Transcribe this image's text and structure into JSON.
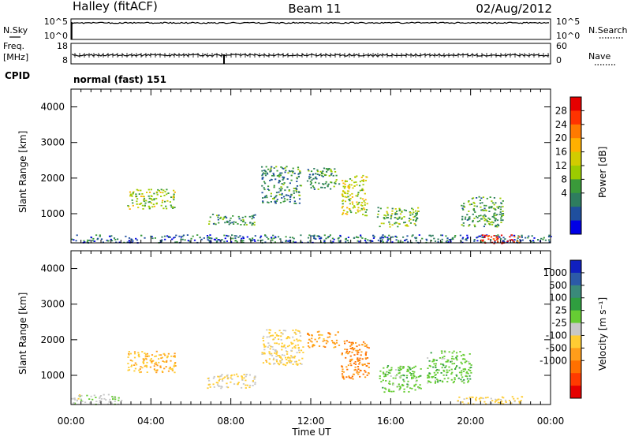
{
  "header": {
    "site": "Halley (fitACF)",
    "beam": "Beam 11",
    "date": "02/Aug/2012"
  },
  "top_strip": {
    "left_label": "N.Sky",
    "right_label": "N.Search",
    "left_ticks": [
      "10^5",
      "10^0"
    ],
    "right_ticks": [
      "10^5",
      "10^0"
    ]
  },
  "freq_strip": {
    "left_label_line1": "Freq.",
    "left_label_line2": "[MHz]",
    "right_label": "Nave",
    "left_ticks": [
      "18",
      "8"
    ],
    "right_ticks": [
      "60",
      "0"
    ]
  },
  "cpid": {
    "label": "CPID",
    "value": "normal (fast) 151"
  },
  "axes": {
    "ylabel": "Slant Range [km]",
    "xlabel": "Time UT",
    "yticks": [
      "4000",
      "3000",
      "2000",
      "1000"
    ],
    "xticks": [
      "00:00",
      "04:00",
      "08:00",
      "12:00",
      "16:00",
      "20:00",
      "00:00"
    ]
  },
  "power_colorbar": {
    "title": "Power [dB]",
    "ticks": [
      "28",
      "24",
      "20",
      "16",
      "12",
      "8",
      "4"
    ],
    "colors": [
      "#e60000",
      "#ff3300",
      "#ff7a00",
      "#ffb000",
      "#d2cc00",
      "#9ccc00",
      "#3a9a3a",
      "#2e7d5f",
      "#1f4f9e",
      "#0000e6"
    ]
  },
  "velocity_colorbar": {
    "title": "Velocity [m s⁻¹]",
    "ticks": [
      "1000",
      "500",
      "100",
      "25",
      "-25",
      "-100",
      "-500",
      "-1000"
    ],
    "colors": [
      "#1020c0",
      "#2c5aa8",
      "#3a8a7a",
      "#2f9e3f",
      "#66cc33",
      "#c8c8c8",
      "#ffcc33",
      "#ff9d1a",
      "#ff7000",
      "#ff3a00",
      "#e60000"
    ]
  },
  "chart_data": [
    {
      "type": "heatmap",
      "title": "Power [dB]",
      "xlabel": "Time UT",
      "ylabel": "Slant Range [km]",
      "xlim": [
        "00:00",
        "24:00"
      ],
      "ylim": [
        180,
        4500
      ],
      "clim": [
        0,
        30
      ],
      "patches": [
        {
          "t0": 0.0,
          "t1": 24.0,
          "r0": 200,
          "r1": 420,
          "value": 6
        },
        {
          "t0": 2.8,
          "t1": 5.2,
          "r0": 1150,
          "r1": 1700,
          "value": 14
        },
        {
          "t0": 6.8,
          "t1": 9.2,
          "r0": 700,
          "r1": 1000,
          "value": 9
        },
        {
          "t0": 9.5,
          "t1": 11.5,
          "r0": 1300,
          "r1": 2350,
          "value": 8
        },
        {
          "t0": 11.8,
          "t1": 13.4,
          "r0": 1700,
          "r1": 2300,
          "value": 10
        },
        {
          "t0": 13.5,
          "t1": 14.8,
          "r0": 950,
          "r1": 2100,
          "value": 16
        },
        {
          "t0": 15.3,
          "t1": 17.4,
          "r0": 650,
          "r1": 1200,
          "value": 12
        },
        {
          "t0": 19.5,
          "t1": 21.6,
          "r0": 650,
          "r1": 1500,
          "value": 10
        },
        {
          "t0": 20.5,
          "t1": 22.5,
          "r0": 180,
          "r1": 420,
          "value": 28
        }
      ]
    },
    {
      "type": "heatmap",
      "title": "Velocity [m s⁻¹]",
      "xlabel": "Time UT",
      "ylabel": "Slant Range [km]",
      "xlim": [
        "00:00",
        "24:00"
      ],
      "ylim": [
        180,
        4500
      ],
      "clim": [
        -1000,
        1000
      ],
      "patches": [
        {
          "t0": 0.0,
          "t1": 2.5,
          "r0": 200,
          "r1": 480,
          "value": 15
        },
        {
          "t0": 2.8,
          "t1": 5.2,
          "r0": 1100,
          "r1": 1700,
          "value": -250
        },
        {
          "t0": 6.8,
          "t1": 9.2,
          "r0": 650,
          "r1": 1050,
          "value": -80
        },
        {
          "t0": 9.5,
          "t1": 11.6,
          "r0": 1300,
          "r1": 2300,
          "value": -150
        },
        {
          "t0": 11.8,
          "t1": 13.4,
          "r0": 1800,
          "r1": 2250,
          "value": -350
        },
        {
          "t0": 13.5,
          "t1": 14.9,
          "r0": 900,
          "r1": 2000,
          "value": -450
        },
        {
          "t0": 15.4,
          "t1": 17.5,
          "r0": 550,
          "r1": 1300,
          "value": 180
        },
        {
          "t0": 17.8,
          "t1": 20.0,
          "r0": 800,
          "r1": 1700,
          "value": 200
        },
        {
          "t0": 19.3,
          "t1": 22.6,
          "r0": 200,
          "r1": 420,
          "value": -130
        }
      ]
    }
  ]
}
